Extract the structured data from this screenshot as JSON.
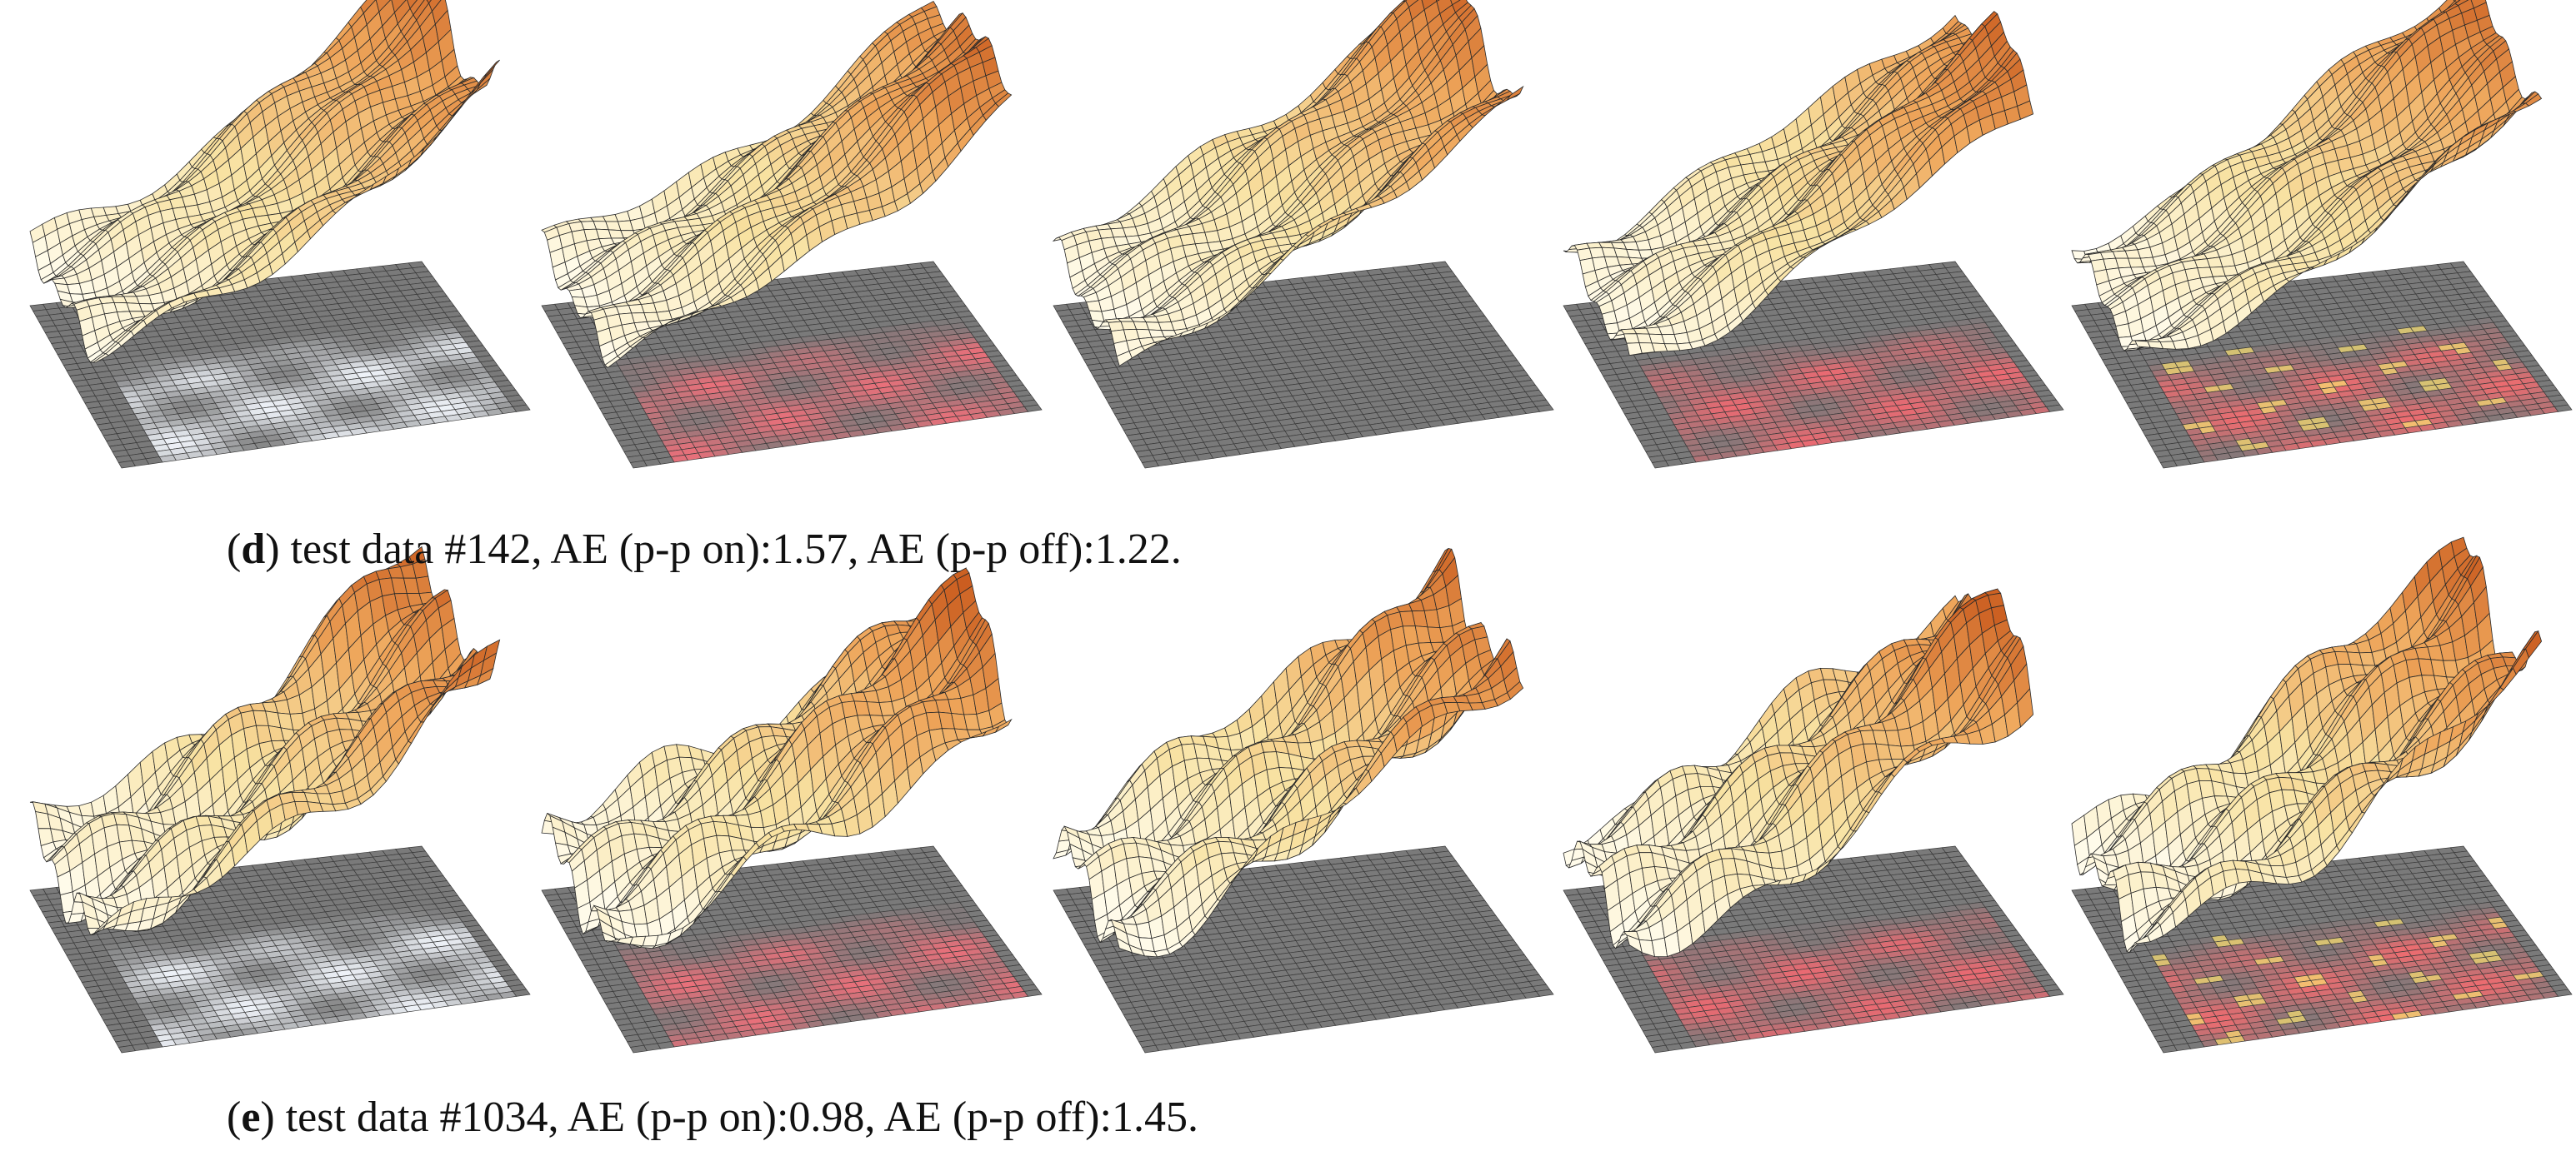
{
  "captions": [
    {
      "before": "(",
      "label": "d",
      "text": ") test data #142, AE (p-p on):1.57, AE (p-p off):1.22."
    },
    {
      "before": "(",
      "label": "e",
      "text": ") test data #1034, AE (p-p on):0.98, AE (p-p off):1.45."
    }
  ]
}
